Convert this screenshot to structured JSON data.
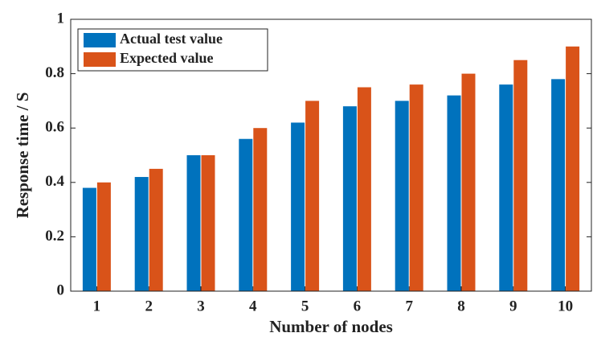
{
  "chart_data": {
    "type": "bar",
    "xlabel": "Number of nodes",
    "ylabel": "Response time / S",
    "categories": [
      1,
      2,
      3,
      4,
      5,
      6,
      7,
      8,
      9,
      10
    ],
    "series": [
      {
        "name": "Actual test value",
        "color": "#0072bd",
        "values": [
          0.38,
          0.42,
          0.5,
          0.56,
          0.62,
          0.68,
          0.7,
          0.72,
          0.76,
          0.78
        ]
      },
      {
        "name": "Expected value",
        "color": "#d95319",
        "values": [
          0.4,
          0.45,
          0.5,
          0.6,
          0.7,
          0.75,
          0.76,
          0.8,
          0.85,
          0.9
        ]
      }
    ],
    "ylim": [
      0,
      1
    ],
    "yticks": [
      0,
      0.2,
      0.4,
      0.6,
      0.8,
      1
    ],
    "legend": "upper left"
  }
}
